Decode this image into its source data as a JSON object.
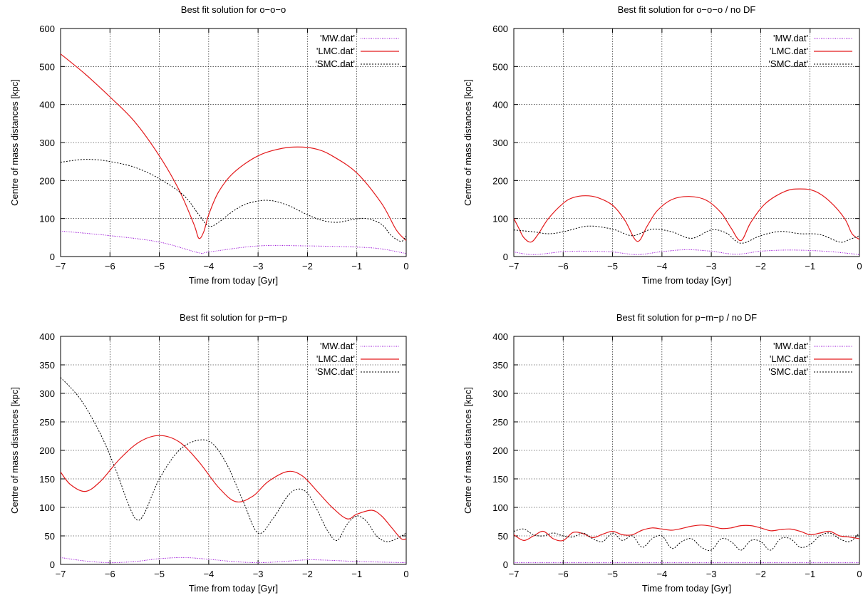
{
  "chart_data": [
    {
      "type": "line",
      "title": "Best fit solution for o−o−o",
      "xlabel": "Time from today [Gyr]",
      "ylabel": "Centre of mass distances [kpc]",
      "xlim": [
        -7,
        0
      ],
      "ylim": [
        0,
        600
      ],
      "xticks": [
        -7,
        -6,
        -5,
        -4,
        -3,
        -2,
        -1,
        0
      ],
      "yticks": [
        0,
        100,
        200,
        300,
        400,
        500,
        600
      ],
      "xtick_labels": [
        "−7",
        "−6",
        "−5",
        "−4",
        "−3",
        "−2",
        "−1",
        "0"
      ],
      "ytick_labels": [
        "0",
        "100",
        "200",
        "300",
        "400",
        "500",
        "600"
      ],
      "grid": true,
      "legend_position": "top-right",
      "series": [
        {
          "name": "'MW.dat'",
          "color": "#9400d3",
          "dash": "1,1.5",
          "x": [
            -7,
            -6,
            -5,
            -4.2,
            -4,
            -3,
            -2,
            -1,
            -0.5,
            0
          ],
          "y": [
            67,
            55,
            38,
            10,
            12,
            28,
            28,
            25,
            20,
            8
          ]
        },
        {
          "name": "'LMC.dat'",
          "color": "#e31a1c",
          "dash": "",
          "x": [
            -7,
            -6.5,
            -6,
            -5.5,
            -5,
            -4.6,
            -4.3,
            -4.2,
            -4.1,
            -4,
            -3.8,
            -3.5,
            -3,
            -2.5,
            -2.1,
            -1.8,
            -1.5,
            -1,
            -0.5,
            -0.2,
            0
          ],
          "y": [
            533,
            480,
            420,
            355,
            265,
            175,
            85,
            48,
            65,
            110,
            170,
            220,
            265,
            285,
            288,
            282,
            265,
            220,
            140,
            70,
            42
          ]
        },
        {
          "name": "'SMC.dat'",
          "color": "#000000",
          "dash": "2,2",
          "x": [
            -7,
            -6.6,
            -6.3,
            -6,
            -5.5,
            -5,
            -4.5,
            -4.2,
            -4,
            -3.8,
            -3.5,
            -3.2,
            -2.8,
            -2.4,
            -2,
            -1.7,
            -1.4,
            -1.1,
            -0.8,
            -0.5,
            -0.3,
            -0.1,
            0
          ],
          "y": [
            248,
            255,
            255,
            250,
            235,
            205,
            160,
            110,
            80,
            90,
            120,
            140,
            148,
            135,
            110,
            95,
            90,
            97,
            100,
            85,
            55,
            40,
            55
          ]
        }
      ]
    },
    {
      "type": "line",
      "title": "Best fit solution for o−o−o / no DF",
      "xlabel": "Time from today [Gyr]",
      "ylabel": "Centre of mass distances [kpc]",
      "xlim": [
        -7,
        0
      ],
      "ylim": [
        0,
        600
      ],
      "xticks": [
        -7,
        -6,
        -5,
        -4,
        -3,
        -2,
        -1,
        0
      ],
      "yticks": [
        0,
        100,
        200,
        300,
        400,
        500,
        600
      ],
      "xtick_labels": [
        "−7",
        "−6",
        "−5",
        "−4",
        "−3",
        "−2",
        "−1",
        "0"
      ],
      "ytick_labels": [
        "0",
        "100",
        "200",
        "300",
        "400",
        "500",
        "600"
      ],
      "grid": true,
      "legend_position": "top-right",
      "series": [
        {
          "name": "'MW.dat'",
          "color": "#9400d3",
          "dash": "1,1.5",
          "x": [
            -7,
            -6.6,
            -6,
            -5.5,
            -5,
            -4.5,
            -4,
            -3.5,
            -3,
            -2.5,
            -2,
            -1.5,
            -1,
            -0.5,
            0
          ],
          "y": [
            12,
            5,
            13,
            14,
            12,
            5,
            13,
            18,
            14,
            6,
            14,
            17,
            16,
            12,
            5
          ]
        },
        {
          "name": "'LMC.dat'",
          "color": "#e31a1c",
          "dash": "",
          "x": [
            -7,
            -6.9,
            -6.8,
            -6.65,
            -6.5,
            -6.3,
            -6,
            -5.8,
            -5.55,
            -5.3,
            -5,
            -4.75,
            -4.5,
            -4.3,
            -4.1,
            -3.8,
            -3.45,
            -3.1,
            -2.8,
            -2.6,
            -2.4,
            -2.2,
            -1.9,
            -1.5,
            -1.2,
            -0.9,
            -0.6,
            -0.3,
            -0.15,
            0
          ],
          "y": [
            100,
            75,
            50,
            38,
            60,
            100,
            140,
            155,
            160,
            155,
            135,
            95,
            40,
            80,
            120,
            150,
            158,
            148,
            115,
            75,
            42,
            90,
            140,
            172,
            178,
            172,
            145,
            100,
            60,
            45
          ]
        },
        {
          "name": "'SMC.dat'",
          "color": "#000000",
          "dash": "2,2",
          "x": [
            -7,
            -6.6,
            -6.3,
            -6,
            -5.5,
            -5,
            -4.6,
            -4.2,
            -3.8,
            -3.4,
            -3,
            -2.7,
            -2.4,
            -2,
            -1.6,
            -1.2,
            -0.8,
            -0.4,
            -0.2,
            0
          ],
          "y": [
            70,
            65,
            60,
            65,
            80,
            72,
            55,
            72,
            65,
            48,
            70,
            62,
            35,
            55,
            66,
            60,
            58,
            38,
            45,
            55
          ]
        }
      ]
    },
    {
      "type": "line",
      "title": "Best fit solution for p−m−p",
      "xlabel": "Time from today [Gyr]",
      "ylabel": "Centre of mass distances [kpc]",
      "xlim": [
        -7,
        0
      ],
      "ylim": [
        0,
        400
      ],
      "xticks": [
        -7,
        -6,
        -5,
        -4,
        -3,
        -2,
        -1,
        0
      ],
      "yticks": [
        0,
        50,
        100,
        150,
        200,
        250,
        300,
        350,
        400
      ],
      "xtick_labels": [
        "−7",
        "−6",
        "−5",
        "−4",
        "−3",
        "−2",
        "−1",
        "0"
      ],
      "ytick_labels": [
        "0",
        "50",
        "100",
        "150",
        "200",
        "250",
        "300",
        "350",
        "400"
      ],
      "grid": true,
      "legend_position": "top-right",
      "series": [
        {
          "name": "'MW.dat'",
          "color": "#9400d3",
          "dash": "1,1.5",
          "x": [
            -7,
            -6.5,
            -6,
            -5.5,
            -5,
            -4.5,
            -4,
            -3.5,
            -3,
            -2.5,
            -2,
            -1.5,
            -1,
            -0.5,
            0
          ],
          "y": [
            12,
            6,
            3,
            5,
            10,
            12,
            9,
            5,
            3,
            5,
            8,
            7,
            5,
            4,
            3
          ]
        },
        {
          "name": "'LMC.dat'",
          "color": "#e31a1c",
          "dash": "",
          "x": [
            -7,
            -6.8,
            -6.5,
            -6.2,
            -5.8,
            -5.4,
            -5,
            -4.6,
            -4.2,
            -3.8,
            -3.45,
            -3.1,
            -2.8,
            -2.4,
            -2.1,
            -1.8,
            -1.5,
            -1.2,
            -1,
            -0.7,
            -0.5,
            -0.3,
            -0.1,
            0
          ],
          "y": [
            162,
            140,
            128,
            145,
            185,
            215,
            226,
            215,
            180,
            135,
            110,
            120,
            145,
            163,
            155,
            128,
            100,
            80,
            88,
            95,
            85,
            65,
            45,
            45
          ]
        },
        {
          "name": "'SMC.dat'",
          "color": "#000000",
          "dash": "2,2",
          "x": [
            -7,
            -6.6,
            -6.2,
            -5.9,
            -5.6,
            -5.45,
            -5.3,
            -5,
            -4.6,
            -4.2,
            -3.9,
            -3.6,
            -3.3,
            -3,
            -2.7,
            -2.4,
            -2.2,
            -2,
            -1.8,
            -1.6,
            -1.4,
            -1.2,
            -1,
            -0.8,
            -0.6,
            -0.4,
            -0.2,
            0
          ],
          "y": [
            328,
            290,
            230,
            170,
            100,
            78,
            90,
            150,
            200,
            218,
            210,
            170,
            110,
            55,
            80,
            120,
            132,
            125,
            95,
            60,
            42,
            70,
            85,
            75,
            50,
            40,
            45,
            55
          ]
        }
      ]
    },
    {
      "type": "line",
      "title": "Best fit solution for p−m−p / no DF",
      "xlabel": "Time from today [Gyr]",
      "ylabel": "Centre of mass distances [kpc]",
      "xlim": [
        -7,
        0
      ],
      "ylim": [
        0,
        400
      ],
      "xticks": [
        -7,
        -6,
        -5,
        -4,
        -3,
        -2,
        -1,
        0
      ],
      "yticks": [
        0,
        50,
        100,
        150,
        200,
        250,
        300,
        350,
        400
      ],
      "xtick_labels": [
        "−7",
        "−6",
        "−5",
        "−4",
        "−3",
        "−2",
        "−1",
        "0"
      ],
      "ytick_labels": [
        "0",
        "50",
        "100",
        "150",
        "200",
        "250",
        "300",
        "350",
        "400"
      ],
      "grid": true,
      "legend_position": "top-right",
      "series": [
        {
          "name": "'MW.dat'",
          "color": "#9400d3",
          "dash": "1,1.5",
          "x": [
            -7,
            -6,
            -5,
            -4,
            -3,
            -2,
            -1,
            0
          ],
          "y": [
            3,
            3,
            3,
            3,
            3,
            3,
            3,
            3
          ]
        },
        {
          "name": "'LMC.dat'",
          "color": "#e31a1c",
          "dash": "",
          "x": [
            -7,
            -6.8,
            -6.6,
            -6.4,
            -6.2,
            -6,
            -5.8,
            -5.6,
            -5.4,
            -5.2,
            -5,
            -4.8,
            -4.6,
            -4.4,
            -4.2,
            -4,
            -3.8,
            -3.6,
            -3.4,
            -3.2,
            -3,
            -2.8,
            -2.6,
            -2.4,
            -2.2,
            -2,
            -1.8,
            -1.6,
            -1.4,
            -1.2,
            -1,
            -0.8,
            -0.6,
            -0.4,
            -0.2,
            0
          ],
          "y": [
            52,
            42,
            50,
            58,
            45,
            42,
            56,
            54,
            47,
            53,
            58,
            52,
            52,
            60,
            64,
            62,
            60,
            63,
            67,
            69,
            67,
            63,
            64,
            68,
            68,
            64,
            59,
            61,
            62,
            58,
            52,
            55,
            58,
            50,
            48,
            45
          ]
        },
        {
          "name": "'SMC.dat'",
          "color": "#000000",
          "dash": "2,2",
          "x": [
            -7,
            -6.8,
            -6.6,
            -6.4,
            -6.2,
            -6,
            -5.8,
            -5.6,
            -5.4,
            -5.2,
            -5,
            -4.8,
            -4.6,
            -4.4,
            -4.2,
            -4,
            -3.8,
            -3.6,
            -3.4,
            -3.2,
            -3,
            -2.8,
            -2.6,
            -2.4,
            -2.2,
            -2,
            -1.8,
            -1.6,
            -1.4,
            -1.2,
            -1,
            -0.8,
            -0.6,
            -0.4,
            -0.2,
            0
          ],
          "y": [
            58,
            62,
            52,
            50,
            55,
            50,
            48,
            55,
            45,
            40,
            55,
            42,
            50,
            30,
            45,
            50,
            28,
            40,
            45,
            30,
            25,
            45,
            40,
            25,
            42,
            40,
            25,
            45,
            45,
            30,
            35,
            50,
            55,
            45,
            40,
            55
          ]
        }
      ]
    }
  ]
}
